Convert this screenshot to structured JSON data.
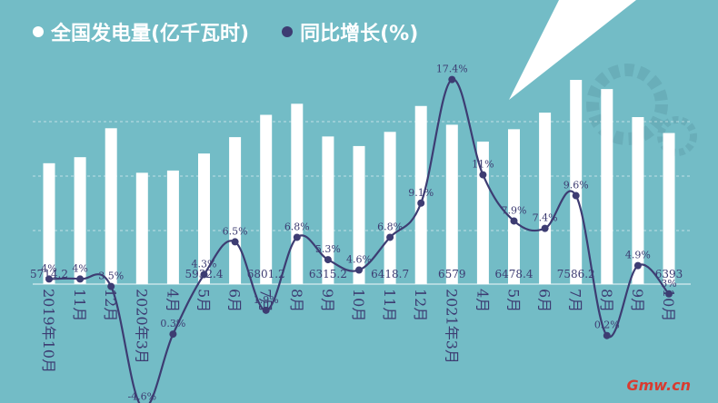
{
  "legend": {
    "bar_label": "全国发电量(亿千瓦时)",
    "line_label": "同比增长(%)"
  },
  "watermark": "Gmw.cn",
  "colors": {
    "background": "#73bcc6",
    "bar": "#ffffff",
    "line": "#3d3c72",
    "grid": "#ffffff",
    "text": "#3d3c72"
  },
  "chart_data": {
    "type": "bar",
    "categories": [
      "2019年10月",
      "11月",
      "12月",
      "2020年3月",
      "4月",
      "5月",
      "6月",
      "7月",
      "8月",
      "9月",
      "10月",
      "11月",
      "12月",
      "2021年3月",
      "4月",
      "5月",
      "6月",
      "7月",
      "8月",
      "9月",
      "10月"
    ],
    "series": [
      {
        "name": "全国发电量(亿千瓦时)",
        "type": "bar",
        "values": [
          5714.2,
          5850,
          6500,
          5500,
          5550,
          5932.4,
          6300,
          6801.2,
          7050,
          6315.2,
          6100,
          6418.7,
          7000,
          6579,
          6200,
          6478.4,
          6850,
          7586.2,
          7380,
          6750,
          6393
        ],
        "printed_labels": [
          "5714.2",
          "",
          "",
          "",
          "",
          "5932.4",
          "",
          "6801.2",
          "",
          "6315.2",
          "",
          "6418.7",
          "",
          "6579",
          "",
          "6478.4",
          "",
          "7586.2",
          "",
          "",
          "6393"
        ]
      },
      {
        "name": "同比增长(%)",
        "type": "line",
        "values": [
          4,
          4,
          3.5,
          -4.6,
          0.3,
          4.3,
          6.5,
          1.9,
          6.8,
          5.3,
          4.6,
          6.8,
          9.1,
          17.4,
          11,
          7.9,
          7.4,
          9.6,
          0.2,
          4.9,
          3
        ],
        "labels": [
          "4%",
          "4%",
          "3.5%",
          "-4.6%",
          "0.3%",
          "4.3%",
          "6.5%",
          "1.9%",
          "6.8%",
          "5.3%",
          "4.6%",
          "6.8%",
          "9.1%",
          "17.4%",
          "11%",
          "7.9%",
          "7.4%",
          "9.6%",
          "0.2%",
          "4.9%",
          "3%"
        ]
      }
    ],
    "bar_ylim": [
      0,
      8000
    ],
    "line_ylim": [
      -6,
      20
    ],
    "grid": true,
    "legend_position": "top-left"
  }
}
